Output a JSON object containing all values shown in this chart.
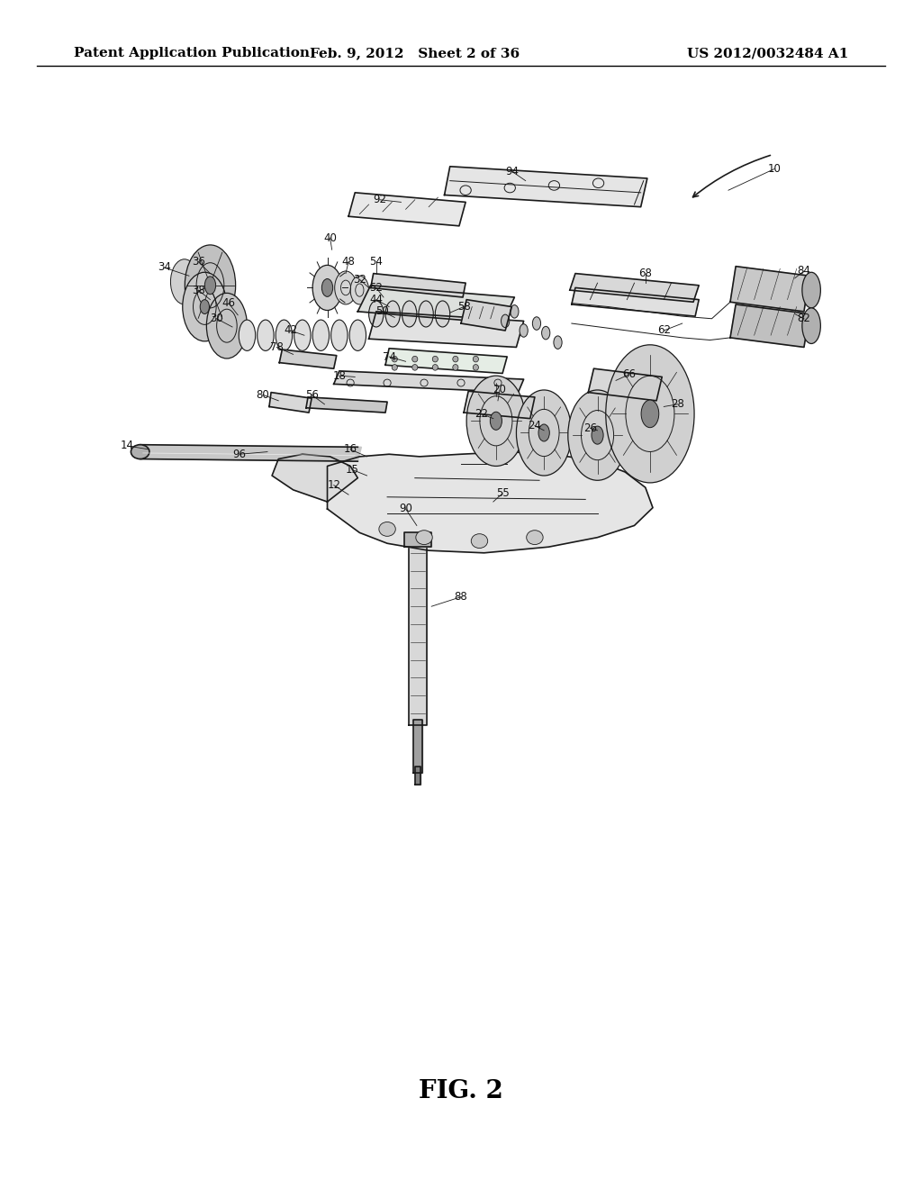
{
  "background_color": "#ffffff",
  "header_left": "Patent Application Publication",
  "header_center": "Feb. 9, 2012   Sheet 2 of 36",
  "header_right": "US 2012/0032484 A1",
  "figure_label": "FIG. 2",
  "header_font_size": 11,
  "figure_font_size": 20,
  "page_width": 10.24,
  "page_height": 13.2,
  "label_positions": {
    "10": [
      0.84,
      0.858,
      0.79,
      0.84
    ],
    "94": [
      0.555,
      0.856,
      0.57,
      0.848
    ],
    "92": [
      0.412,
      0.832,
      0.435,
      0.83
    ],
    "84": [
      0.872,
      0.772,
      0.862,
      0.766
    ],
    "82": [
      0.872,
      0.732,
      0.862,
      0.736
    ],
    "68": [
      0.7,
      0.77,
      0.7,
      0.762
    ],
    "62": [
      0.72,
      0.722,
      0.74,
      0.728
    ],
    "40": [
      0.358,
      0.8,
      0.36,
      0.79
    ],
    "36": [
      0.215,
      0.78,
      0.228,
      0.77
    ],
    "34": [
      0.178,
      0.775,
      0.205,
      0.768
    ],
    "48": [
      0.378,
      0.78,
      0.375,
      0.77
    ],
    "54": [
      0.408,
      0.78,
      0.408,
      0.77
    ],
    "32": [
      0.39,
      0.765,
      0.4,
      0.758
    ],
    "52": [
      0.408,
      0.758,
      0.416,
      0.75
    ],
    "44": [
      0.408,
      0.748,
      0.422,
      0.742
    ],
    "50": [
      0.415,
      0.738,
      0.428,
      0.733
    ],
    "58": [
      0.503,
      0.742,
      0.488,
      0.737
    ],
    "38": [
      0.215,
      0.756,
      0.228,
      0.748
    ],
    "46": [
      0.248,
      0.745,
      0.258,
      0.735
    ],
    "30": [
      0.235,
      0.732,
      0.252,
      0.725
    ],
    "42": [
      0.315,
      0.722,
      0.33,
      0.718
    ],
    "78": [
      0.3,
      0.708,
      0.318,
      0.702
    ],
    "18": [
      0.368,
      0.684,
      0.385,
      0.683
    ],
    "74": [
      0.422,
      0.7,
      0.44,
      0.696
    ],
    "80": [
      0.285,
      0.668,
      0.302,
      0.663
    ],
    "56": [
      0.338,
      0.668,
      0.352,
      0.66
    ],
    "20": [
      0.542,
      0.672,
      0.54,
      0.663
    ],
    "66": [
      0.682,
      0.685,
      0.668,
      0.68
    ],
    "28": [
      0.735,
      0.66,
      0.72,
      0.658
    ],
    "22": [
      0.522,
      0.652,
      0.535,
      0.648
    ],
    "24": [
      0.58,
      0.642,
      0.59,
      0.638
    ],
    "26": [
      0.64,
      0.64,
      0.648,
      0.638
    ],
    "96": [
      0.26,
      0.618,
      0.29,
      0.62
    ],
    "14": [
      0.138,
      0.625,
      0.162,
      0.622
    ],
    "16": [
      0.38,
      0.622,
      0.398,
      0.616
    ],
    "15": [
      0.382,
      0.605,
      0.398,
      0.6
    ],
    "12": [
      0.362,
      0.592,
      0.378,
      0.584
    ],
    "55": [
      0.545,
      0.585,
      0.535,
      0.578
    ],
    "90": [
      0.44,
      0.572,
      0.452,
      0.558
    ],
    "88": [
      0.5,
      0.498,
      0.468,
      0.49
    ]
  }
}
